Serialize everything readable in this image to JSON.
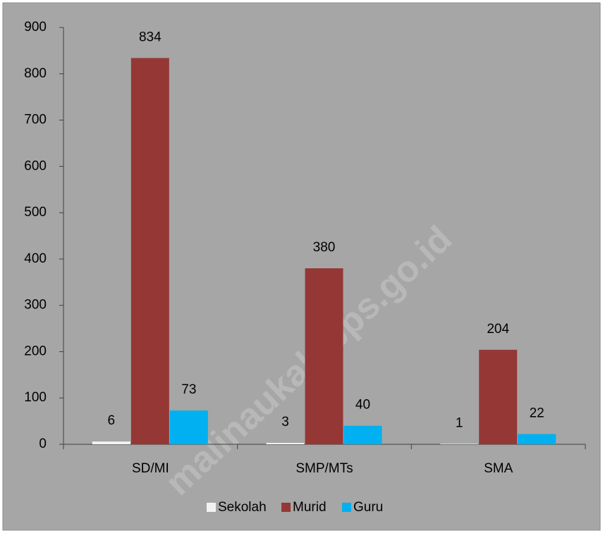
{
  "chart_data": {
    "type": "bar",
    "categories": [
      "SD/MI",
      "SMP/MTs",
      "SMA"
    ],
    "series": [
      {
        "name": "Sekolah",
        "color": "#f2f2f2",
        "values": [
          6,
          3,
          1
        ]
      },
      {
        "name": "Murid",
        "color": "#953735",
        "values": [
          834,
          380,
          204
        ]
      },
      {
        "name": "Guru",
        "color": "#00b0f0",
        "values": [
          73,
          40,
          22
        ]
      }
    ],
    "ylim": [
      0,
      900
    ],
    "yticks": [
      0,
      100,
      200,
      300,
      400,
      500,
      600,
      700,
      800,
      900
    ],
    "legend": "bottom",
    "watermark": "malinaukab.bps.go.id"
  }
}
